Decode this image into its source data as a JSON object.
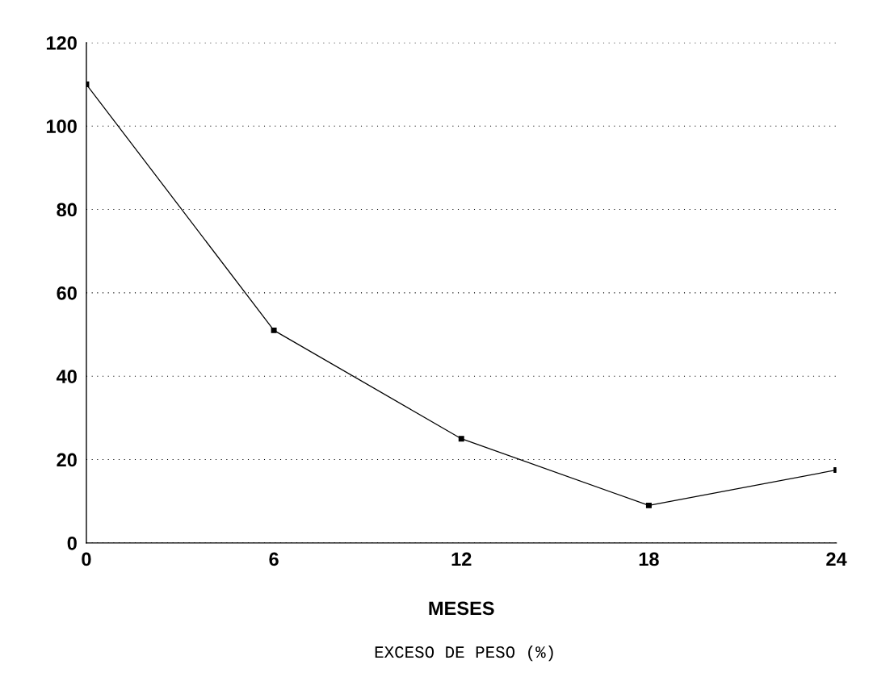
{
  "chart_data": {
    "type": "line",
    "x": [
      0,
      6,
      12,
      18,
      24
    ],
    "values": [
      110,
      51,
      25,
      9,
      17.5
    ],
    "color": "#000000",
    "marker": "square",
    "line_style": "solid",
    "xlim": [
      0,
      24
    ],
    "xticks": [
      0,
      6,
      12,
      18,
      24
    ],
    "ylim": [
      0,
      120
    ],
    "yticks": [
      0,
      20,
      40,
      60,
      80,
      100,
      120
    ],
    "grid": "y",
    "xlabel": "MESES",
    "annotations": [
      "EXCESO DE PESO (%)"
    ]
  }
}
